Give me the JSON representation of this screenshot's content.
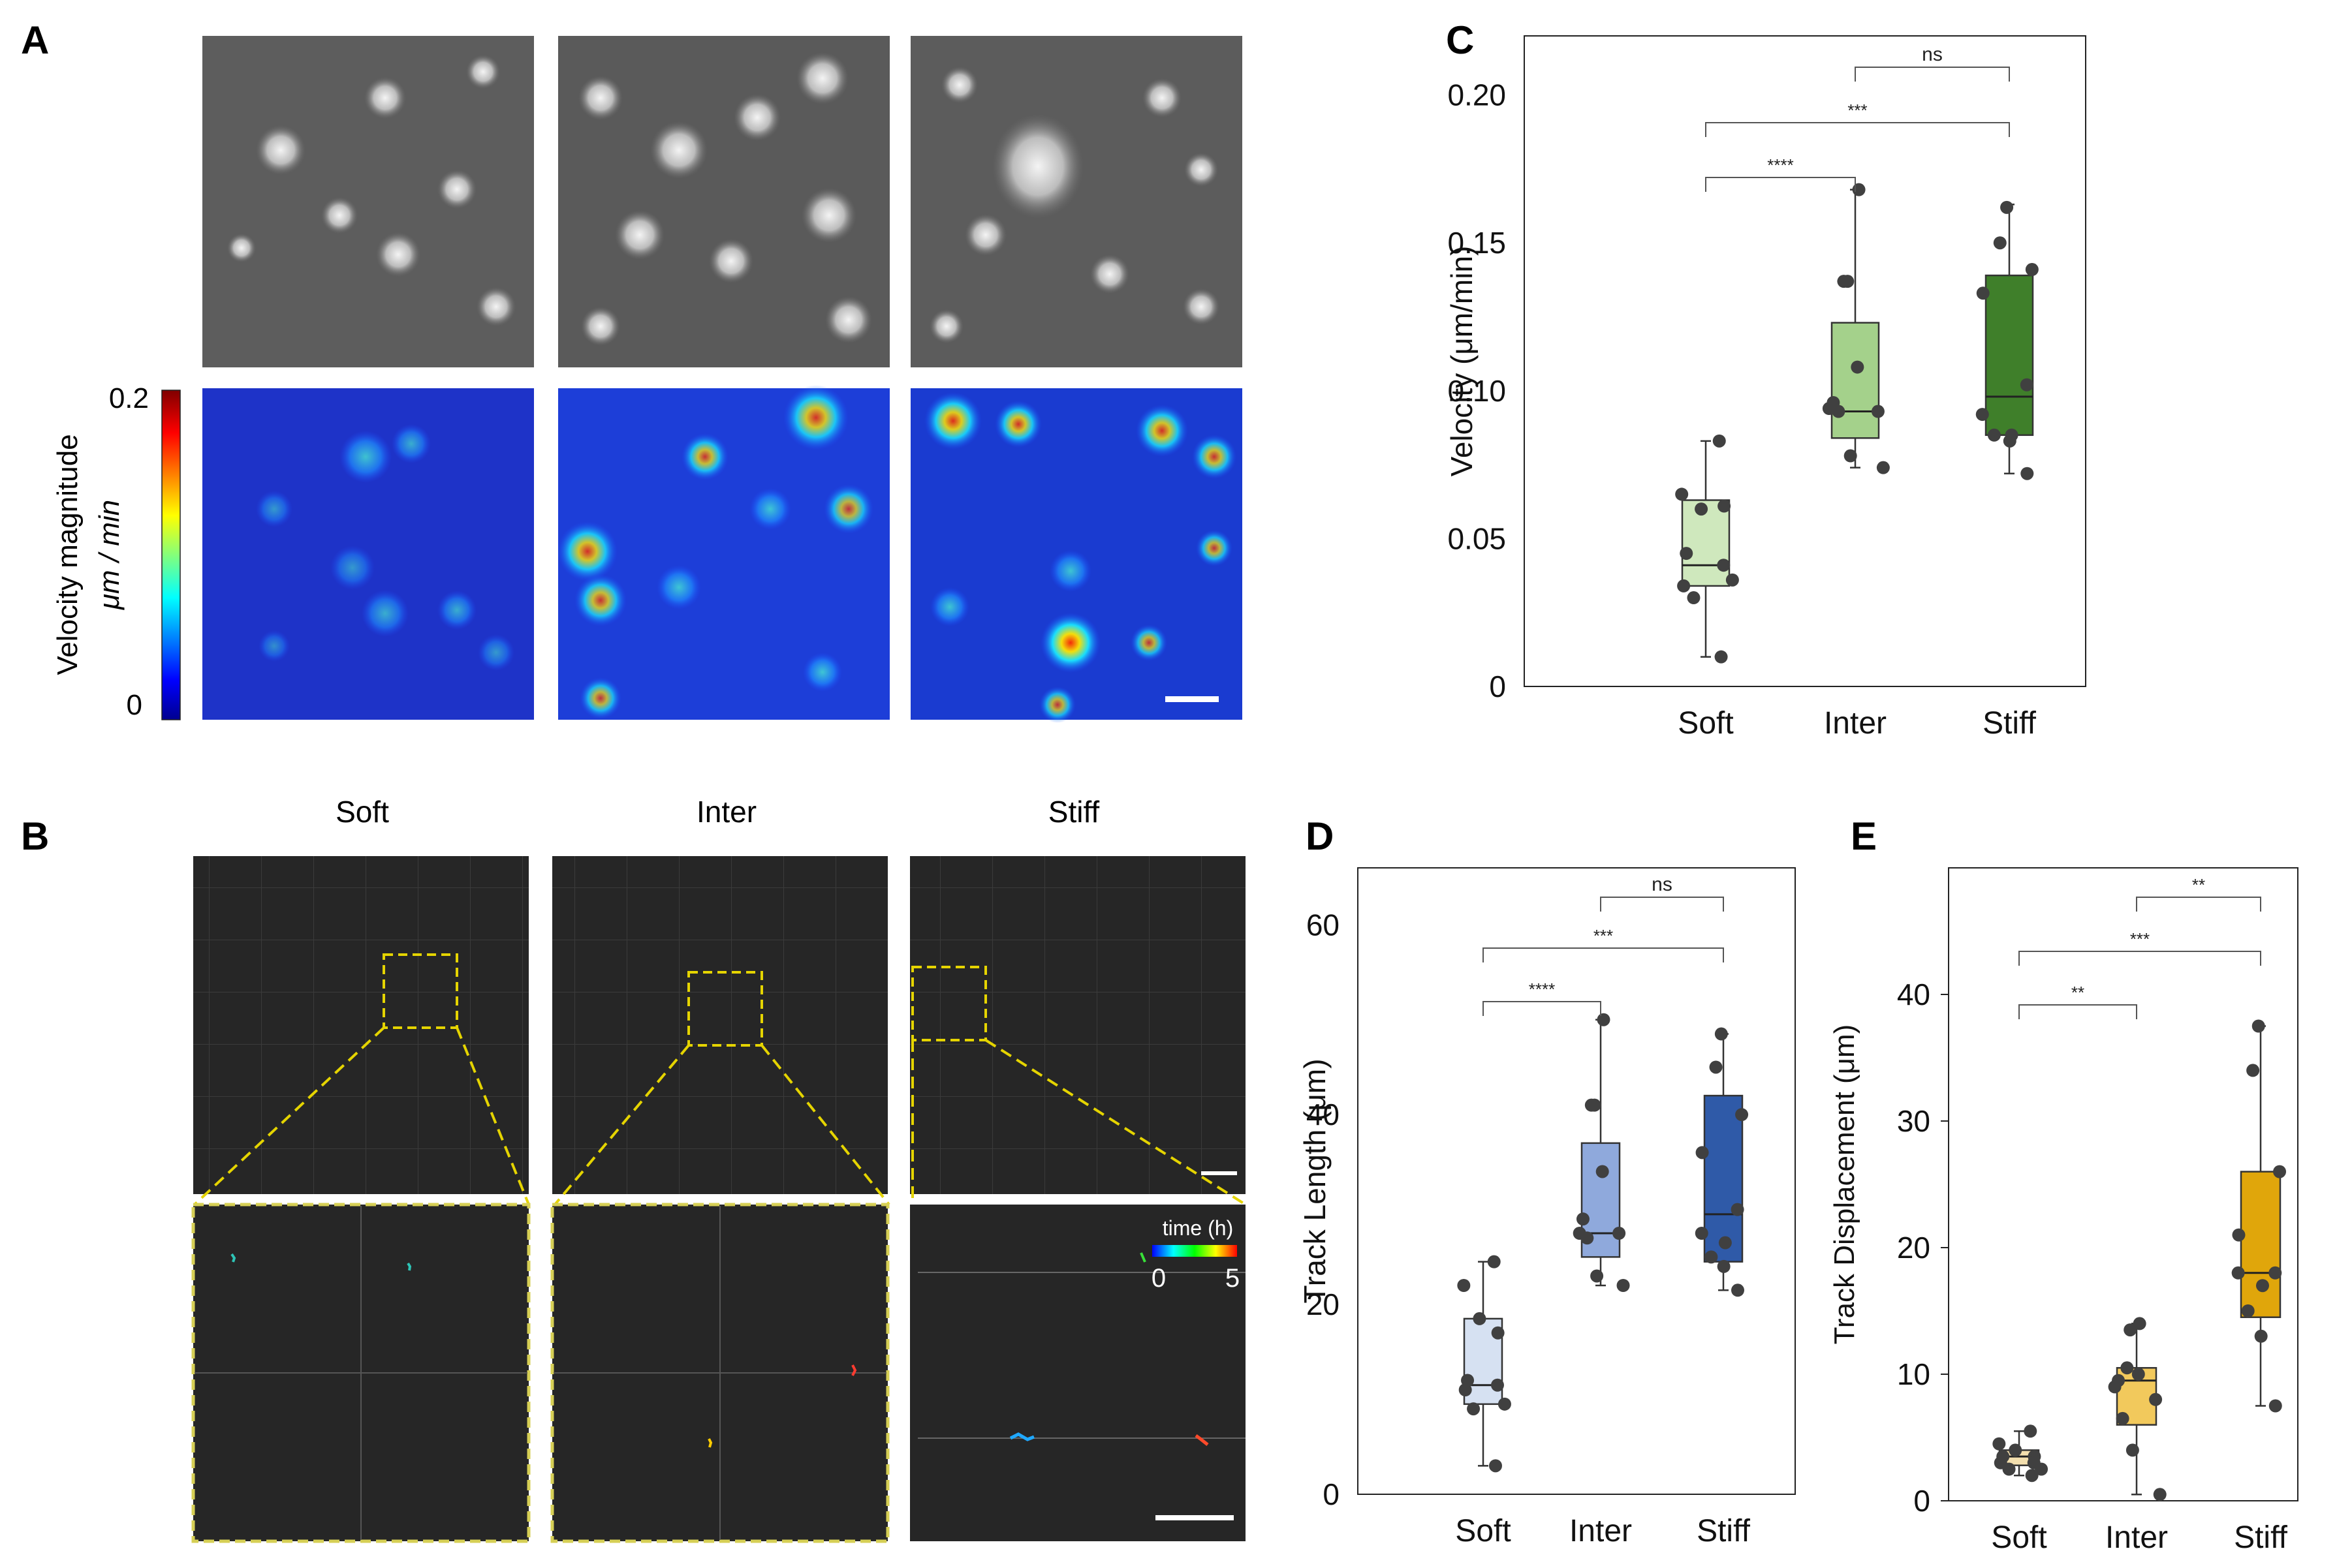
{
  "panel_labels": {
    "a": "A",
    "b": "B",
    "c": "C",
    "d": "D",
    "e": "E"
  },
  "panel_a": {
    "colorbar_title": "Velocity magnitude",
    "colorbar_unit": "μm / min",
    "colorbar_max": "0.2",
    "colorbar_min": "0"
  },
  "panel_b": {
    "conditions": [
      "Soft",
      "Inter",
      "Stiff"
    ],
    "time_legend_title": "time (h)",
    "time_legend_min": "0",
    "time_legend_max": "5"
  },
  "colors": {
    "soft_c": "#cfe8bd",
    "inter_c": "#a4d18b",
    "stiff_c": "#3f7f2a",
    "soft_d": "#d6e1f2",
    "inter_d": "#8fa9dc",
    "stiff_d": "#2f5aa8",
    "soft_e": "#f3dfae",
    "inter_e": "#f2c95c",
    "stiff_e": "#e0a60b",
    "point": "#404040"
  },
  "chart_data": [
    {
      "id": "C",
      "type": "box",
      "title": "",
      "xlabel": "",
      "ylabel": "Velocity (μm/min)",
      "categories": [
        "Soft",
        "Inter",
        "Stiff"
      ],
      "ylim": [
        0,
        0.22
      ],
      "yticks": [
        0,
        0.05,
        0.1,
        0.15,
        0.2
      ],
      "ytick_labels": [
        "0",
        "0.05",
        "0.10",
        "0.15",
        "0.20"
      ],
      "boxes": [
        {
          "q1": 0.034,
          "median": 0.041,
          "q3": 0.063,
          "whisker_low": 0.01,
          "whisker_high": 0.083
        },
        {
          "q1": 0.084,
          "median": 0.093,
          "q3": 0.123,
          "whisker_low": 0.074,
          "whisker_high": 0.168
        },
        {
          "q1": 0.085,
          "median": 0.098,
          "q3": 0.139,
          "whisker_low": 0.072,
          "whisker_high": 0.163
        }
      ],
      "points": [
        [
          0.083,
          0.065,
          0.06,
          0.061,
          0.045,
          0.041,
          0.034,
          0.036,
          0.03,
          0.01
        ],
        [
          0.168,
          0.137,
          0.137,
          0.108,
          0.096,
          0.094,
          0.093,
          0.093,
          0.078,
          0.074
        ],
        [
          0.162,
          0.15,
          0.141,
          0.133,
          0.102,
          0.092,
          0.085,
          0.085,
          0.083,
          0.072
        ]
      ],
      "significance": [
        {
          "pair": [
            1,
            2
          ],
          "label": "ns"
        },
        {
          "pair": [
            0,
            2
          ],
          "label": "***"
        },
        {
          "pair": [
            0,
            1
          ],
          "label": "****"
        }
      ]
    },
    {
      "id": "D",
      "type": "box",
      "title": "",
      "xlabel": "",
      "ylabel": "Track Length (μm)",
      "categories": [
        "Soft",
        "Inter",
        "Stiff"
      ],
      "ylim": [
        0,
        66
      ],
      "yticks": [
        0,
        20,
        40,
        60
      ],
      "ytick_labels": [
        "0",
        "20",
        "40",
        "60"
      ],
      "boxes": [
        {
          "q1": 9.5,
          "median": 11.5,
          "q3": 18.5,
          "whisker_low": 3.0,
          "whisker_high": 24.5
        },
        {
          "q1": 25.0,
          "median": 27.5,
          "q3": 37.0,
          "whisker_low": 22.0,
          "whisker_high": 50.0
        },
        {
          "q1": 24.5,
          "median": 29.5,
          "q3": 42.0,
          "whisker_low": 21.5,
          "whisker_high": 48.5
        }
      ],
      "points": [
        [
          24.5,
          22.0,
          18.5,
          17.0,
          12.0,
          11.5,
          11.0,
          9.5,
          9.0,
          3.0
        ],
        [
          50.0,
          41.0,
          41.0,
          34.0,
          29.0,
          27.5,
          27.5,
          27.0,
          23.0,
          22.0
        ],
        [
          48.5,
          45.0,
          40.0,
          36.0,
          30.0,
          27.5,
          26.5,
          25.0,
          24.0,
          21.5
        ]
      ],
      "significance": [
        {
          "pair": [
            1,
            2
          ],
          "label": "ns"
        },
        {
          "pair": [
            0,
            2
          ],
          "label": "***"
        },
        {
          "pair": [
            0,
            1
          ],
          "label": "****"
        }
      ]
    },
    {
      "id": "E",
      "type": "box",
      "title": "",
      "xlabel": "",
      "ylabel": "Track Displacement (μm)",
      "categories": [
        "Soft",
        "Inter",
        "Stiff"
      ],
      "ylim": [
        0,
        50
      ],
      "yticks": [
        0,
        10,
        20,
        30,
        40
      ],
      "ytick_labels": [
        "0",
        "10",
        "20",
        "30",
        "40"
      ],
      "boxes": [
        {
          "q1": 2.8,
          "median": 3.5,
          "q3": 4.0,
          "whisker_low": 2.0,
          "whisker_high": 5.5
        },
        {
          "q1": 6.0,
          "median": 9.5,
          "q3": 10.5,
          "whisker_low": 0.5,
          "whisker_high": 14.0
        },
        {
          "q1": 14.5,
          "median": 18.0,
          "q3": 26.0,
          "whisker_low": 7.5,
          "whisker_high": 37.5
        }
      ],
      "points": [
        [
          5.5,
          4.5,
          4.0,
          3.5,
          3.5,
          3.0,
          3.0,
          2.5,
          2.5,
          2.0
        ],
        [
          14.0,
          13.5,
          10.5,
          10.0,
          9.5,
          9.0,
          8.0,
          6.5,
          4.0,
          0.5
        ],
        [
          37.5,
          34.0,
          26.0,
          21.0,
          18.0,
          18.0,
          17.0,
          15.0,
          13.0,
          7.5
        ]
      ],
      "significance": [
        {
          "pair": [
            1,
            2
          ],
          "label": "**"
        },
        {
          "pair": [
            0,
            2
          ],
          "label": "***"
        },
        {
          "pair": [
            0,
            1
          ],
          "label": "**"
        }
      ]
    }
  ]
}
